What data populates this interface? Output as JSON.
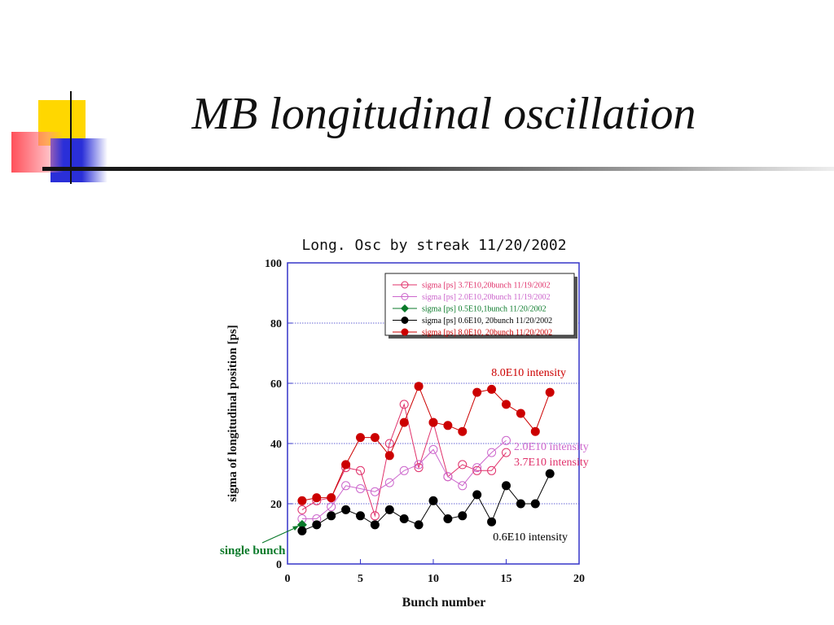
{
  "slide": {
    "title": "MB longitudinal oscillation"
  },
  "chart_data": {
    "type": "line",
    "title": "Long. Osc by streak 11/20/2002",
    "xlabel": "Bunch number",
    "ylabel": "sigma of longitudinal position [ps]",
    "xlim": [
      0,
      20
    ],
    "ylim": [
      0,
      100
    ],
    "xticks": [
      0,
      5,
      10,
      15,
      20
    ],
    "yticks": [
      0,
      20,
      40,
      60,
      80,
      100
    ],
    "grid": "horizontal",
    "legend_position": "top-right",
    "series": [
      {
        "name": "sigma [ps] 3.7E10,20bunch 11/19/2002",
        "marker": "open-circle",
        "color": "#e0306a",
        "x": [
          1,
          2,
          3,
          4,
          5,
          6,
          7,
          8,
          9,
          10,
          11,
          12,
          13,
          14,
          15
        ],
        "y": [
          18,
          21,
          22,
          32,
          31,
          16,
          40,
          53,
          32,
          47,
          29,
          33,
          31,
          31,
          37
        ]
      },
      {
        "name": "sigma [ps] 2.0E10,20bunch 11/19/2002",
        "marker": "open-circle",
        "color": "#cc66cc",
        "x": [
          1,
          2,
          3,
          4,
          5,
          6,
          7,
          8,
          9,
          10,
          11,
          12,
          13,
          14,
          15
        ],
        "y": [
          15,
          15,
          19,
          26,
          25,
          24,
          27,
          31,
          33,
          38,
          29,
          26,
          32,
          37,
          41
        ]
      },
      {
        "name": "sigma [ps] 0.5E10,1bunch 11/20/2002",
        "marker": "diamond",
        "color": "#0a7a2a",
        "x": [
          1
        ],
        "y": [
          13
        ]
      },
      {
        "name": "sigma [ps] 0.6E10, 20bunch 11/20/2002",
        "marker": "filled-circle",
        "color": "#000000",
        "x": [
          1,
          2,
          3,
          4,
          5,
          6,
          7,
          8,
          9,
          10,
          11,
          12,
          13,
          14,
          15,
          16,
          17,
          18
        ],
        "y": [
          11,
          13,
          16,
          18,
          16,
          13,
          18,
          15,
          13,
          21,
          15,
          16,
          23,
          14,
          26,
          20,
          20,
          30
        ]
      },
      {
        "name": "sigma [ps] 8.0E10, 20bunch 11/20/2002",
        "marker": "filled-circle",
        "color": "#cc0000",
        "x": [
          1,
          2,
          3,
          4,
          5,
          6,
          7,
          8,
          9,
          10,
          11,
          12,
          13,
          14,
          15,
          16,
          17,
          18
        ],
        "y": [
          21,
          22,
          22,
          33,
          42,
          42,
          36,
          47,
          59,
          47,
          46,
          44,
          57,
          58,
          53,
          50,
          44,
          57
        ]
      }
    ],
    "annotations": [
      {
        "text": "8.0E10 intensity",
        "color": "#cc0000"
      },
      {
        "text": "2.0E10 intensity",
        "color": "#cc66cc"
      },
      {
        "text": "3.7E10 intensity",
        "color": "#e0306a"
      },
      {
        "text": "0.6E10 intensity",
        "color": "#000000"
      },
      {
        "text": "single bunch",
        "color": "#0a7a2a"
      }
    ]
  }
}
